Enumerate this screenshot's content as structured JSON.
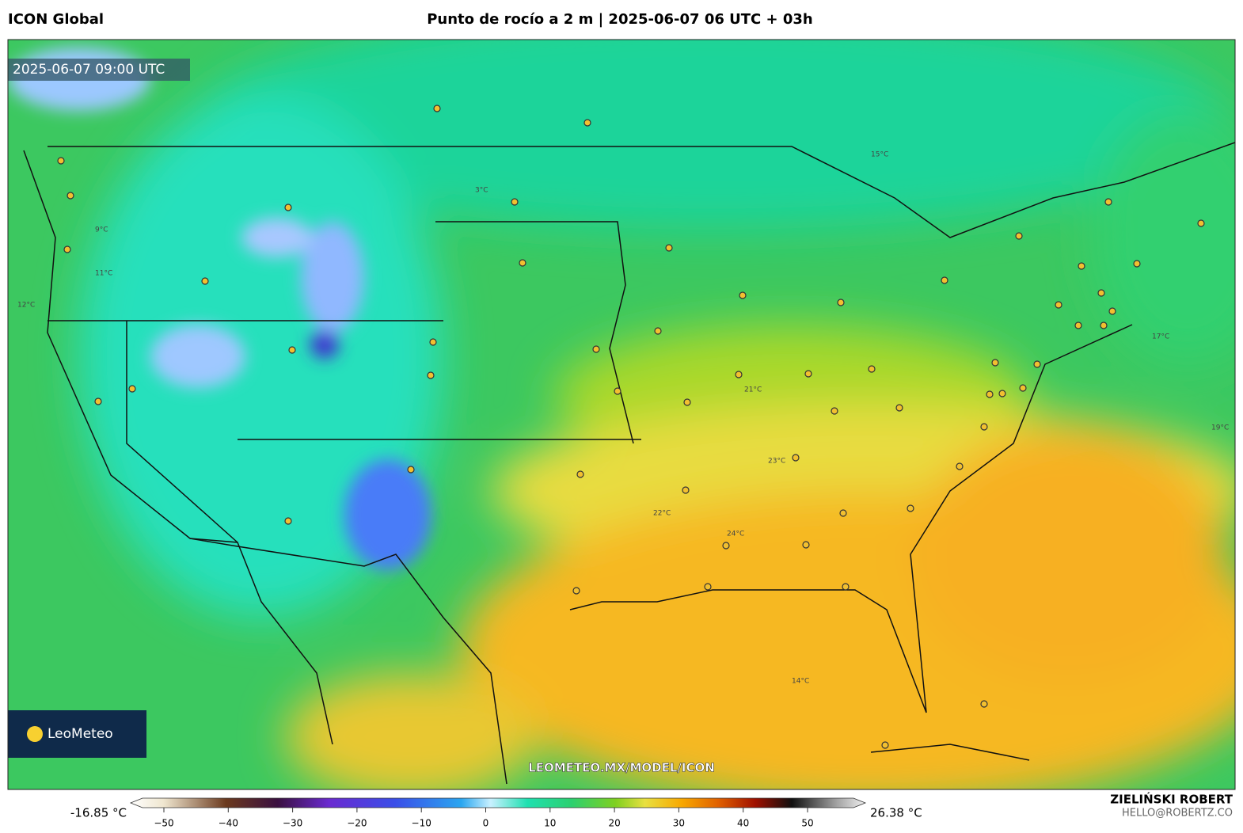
{
  "header": {
    "model": "ICON Global",
    "title": "Punto de rocío a 2 m | 2025-06-07 06 UTC + 03h"
  },
  "map": {
    "valid_time": "2025-06-07 09:00 UTC",
    "watermark": "LEOMETEO.MX/MODEL/ICON",
    "logo": "LeoMeteo",
    "contour_labels": [
      "11°C",
      "12°C",
      "9°C",
      "3°C",
      "15°C",
      "21°C",
      "23°C",
      "22°C",
      "24°C",
      "14°C",
      "17°C",
      "19°C"
    ]
  },
  "colorbar": {
    "min_label": "-16.85 °C",
    "max_label": "26.38 °C",
    "ticks": [
      {
        "value": -50,
        "label": "−50"
      },
      {
        "value": -40,
        "label": "−40"
      },
      {
        "value": -30,
        "label": "−30"
      },
      {
        "value": -20,
        "label": "−20"
      },
      {
        "value": -10,
        "label": "−10"
      },
      0,
      10,
      20,
      30,
      40,
      50
    ]
  },
  "author": {
    "name": "ZIELIŃSKI ROBERT",
    "email": "HELLO@ROBERTZ.CO"
  }
}
